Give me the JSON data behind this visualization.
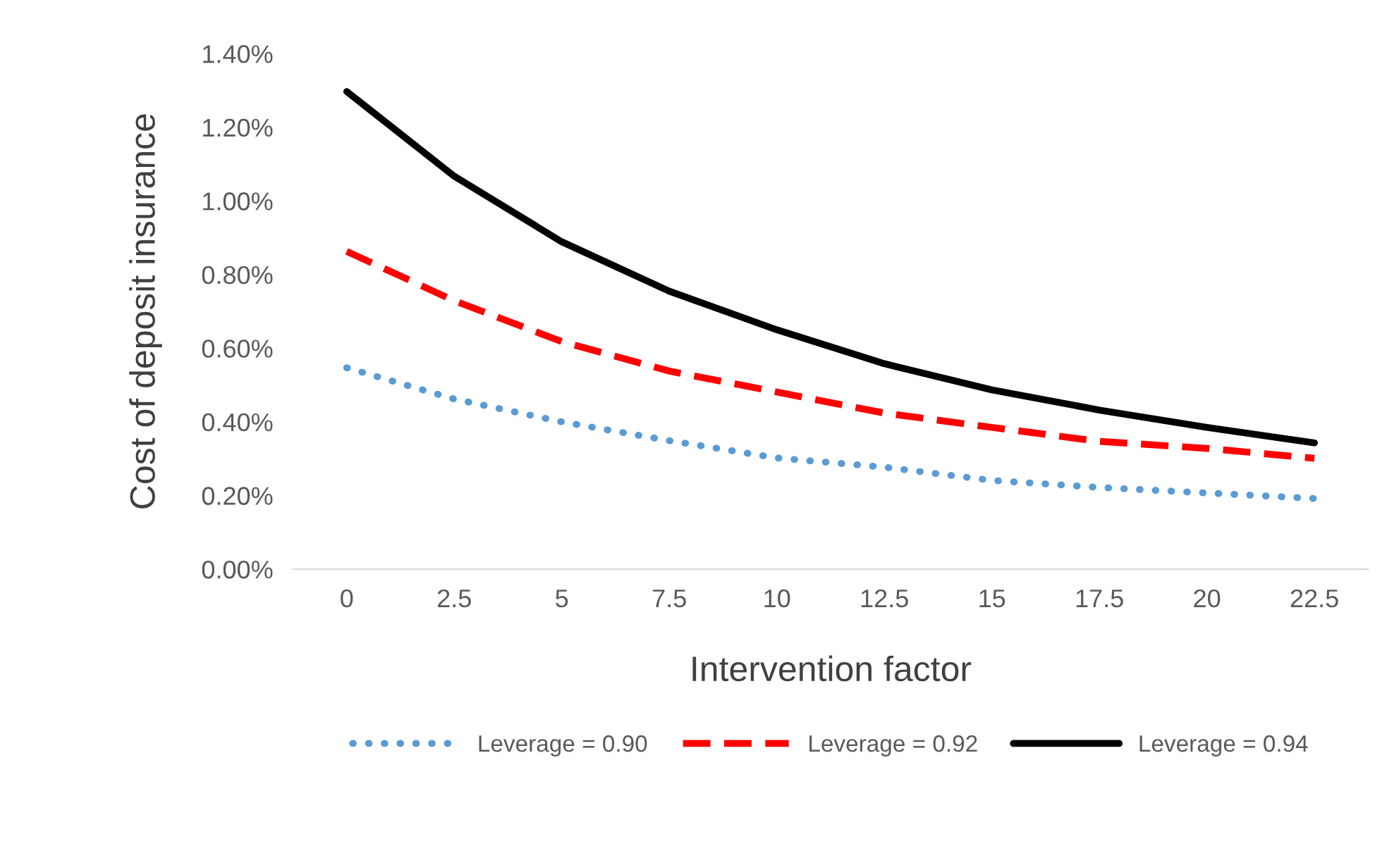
{
  "chart_data": {
    "type": "line",
    "xlabel": "Intervention factor",
    "ylabel": "Cost of deposit insurance",
    "categories": [
      "0",
      "2.5",
      "5",
      "7.5",
      "10",
      "12.5",
      "15",
      "17.5",
      "20",
      "22.5"
    ],
    "series": [
      {
        "name": "Leverage = 0.90",
        "color": "#5b9bd5",
        "line_style": "dotted",
        "values": [
          0.547,
          0.462,
          0.4,
          0.349,
          0.302,
          0.277,
          0.241,
          0.222,
          0.207,
          0.192
        ]
      },
      {
        "name": "Leverage = 0.92",
        "color": "#ff0000",
        "line_style": "dashed",
        "values": [
          0.863,
          0.729,
          0.618,
          0.538,
          0.481,
          0.424,
          0.385,
          0.347,
          0.328,
          0.301
        ]
      },
      {
        "name": "Leverage = 0.94",
        "color": "#000000",
        "line_style": "solid",
        "values": [
          1.297,
          1.067,
          0.889,
          0.755,
          0.65,
          0.558,
          0.487,
          0.432,
          0.385,
          0.343
        ]
      }
    ],
    "ylim": [
      0,
      1.4
    ],
    "yticks": [
      {
        "value": 0,
        "label": "0.00%"
      },
      {
        "value": 0.2,
        "label": "0.20%"
      },
      {
        "value": 0.4,
        "label": "0.40%"
      },
      {
        "value": 0.6,
        "label": "0.60%"
      },
      {
        "value": 0.8,
        "label": "0.80%"
      },
      {
        "value": 1.0,
        "label": "1.00%"
      },
      {
        "value": 1.2,
        "label": "1.20%"
      },
      {
        "value": 1.4,
        "label": "1.40%"
      }
    ],
    "grid": false,
    "legend": "bottom",
    "marker": "none"
  }
}
